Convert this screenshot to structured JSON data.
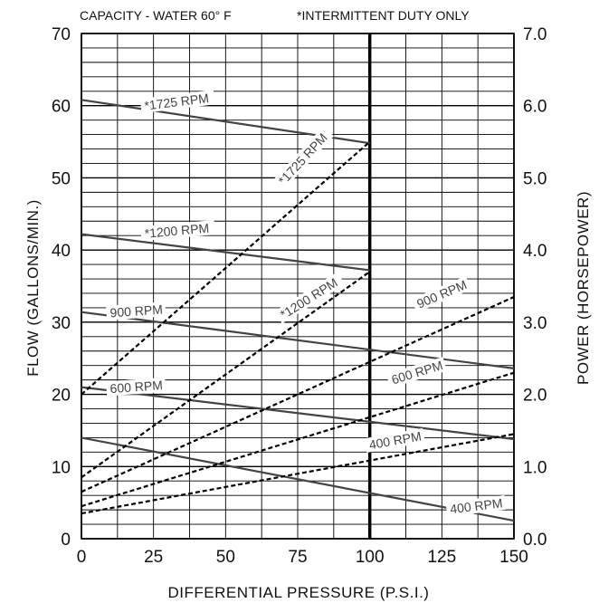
{
  "chart_data": {
    "type": "line",
    "header": {
      "left": "CAPACITY - WATER 60° F",
      "right": "*INTERMITTENT DUTY ONLY"
    },
    "xlabel": "DIFFERENTIAL PRESSURE (P.S.I.)",
    "ylabel_left": "FLOW (GALLONS/MIN.)",
    "ylabel_right": "POWER (HORSEPOWER)",
    "xlim": [
      0,
      150
    ],
    "ylim_left": [
      0,
      70
    ],
    "ylim_right": [
      0,
      7.0
    ],
    "x_ticks": [
      "0",
      "25",
      "50",
      "75",
      "100",
      "125",
      "150"
    ],
    "y_left_ticks": [
      "0",
      "10",
      "20",
      "30",
      "40",
      "50",
      "60",
      "70"
    ],
    "y_right_ticks": [
      "0.0",
      "1.0",
      "2.0",
      "3.0",
      "4.0",
      "5.0",
      "6.0",
      "7.0"
    ],
    "grid": true,
    "flow_series": [
      {
        "name": "*1725 RPM",
        "x": [
          0,
          100
        ],
        "y": [
          60.8,
          54.8
        ],
        "label_at": [
          22,
          59.5,
          -7
        ]
      },
      {
        "name": "*1200 RPM",
        "x": [
          0,
          100
        ],
        "y": [
          42.2,
          37.2
        ],
        "label_at": [
          22,
          41.8,
          -5
        ]
      },
      {
        "name": "900 RPM",
        "x": [
          0,
          150
        ],
        "y": [
          31.4,
          23.6
        ],
        "label_at": [
          10,
          30.8,
          -4
        ]
      },
      {
        "name": "600 RPM",
        "x": [
          0,
          150
        ],
        "y": [
          21.0,
          13.8
        ],
        "label_at": [
          10,
          20.3,
          -4
        ]
      },
      {
        "name": "400 RPM",
        "x": [
          0,
          150
        ],
        "y": [
          14.0,
          2.5
        ],
        "label_at": [
          128,
          3.6,
          -7
        ]
      }
    ],
    "power_series": [
      {
        "name": "*1725 RPM",
        "x": [
          0,
          100
        ],
        "y": [
          2.0,
          5.5
        ],
        "label_at": [
          70,
          4.9,
          -47
        ]
      },
      {
        "name": "*1200 RPM",
        "x": [
          0,
          100
        ],
        "y": [
          0.85,
          3.7
        ],
        "label_at": [
          70,
          3.05,
          -32
        ]
      },
      {
        "name": "900 RPM",
        "x": [
          0,
          150
        ],
        "y": [
          0.65,
          3.35
        ],
        "label_at": [
          117,
          3.2,
          -23
        ]
      },
      {
        "name": "600 RPM",
        "x": [
          0,
          150
        ],
        "y": [
          0.45,
          2.3
        ],
        "label_at": [
          108,
          2.15,
          -17
        ]
      },
      {
        "name": "400 RPM",
        "x": [
          0,
          150
        ],
        "y": [
          0.35,
          1.45
        ],
        "label_at": [
          100,
          1.25,
          -10
        ]
      }
    ],
    "marker_x": 100,
    "colors": {
      "flow_line": "#444444",
      "power_line": "#000000",
      "grid": "#000000"
    }
  }
}
